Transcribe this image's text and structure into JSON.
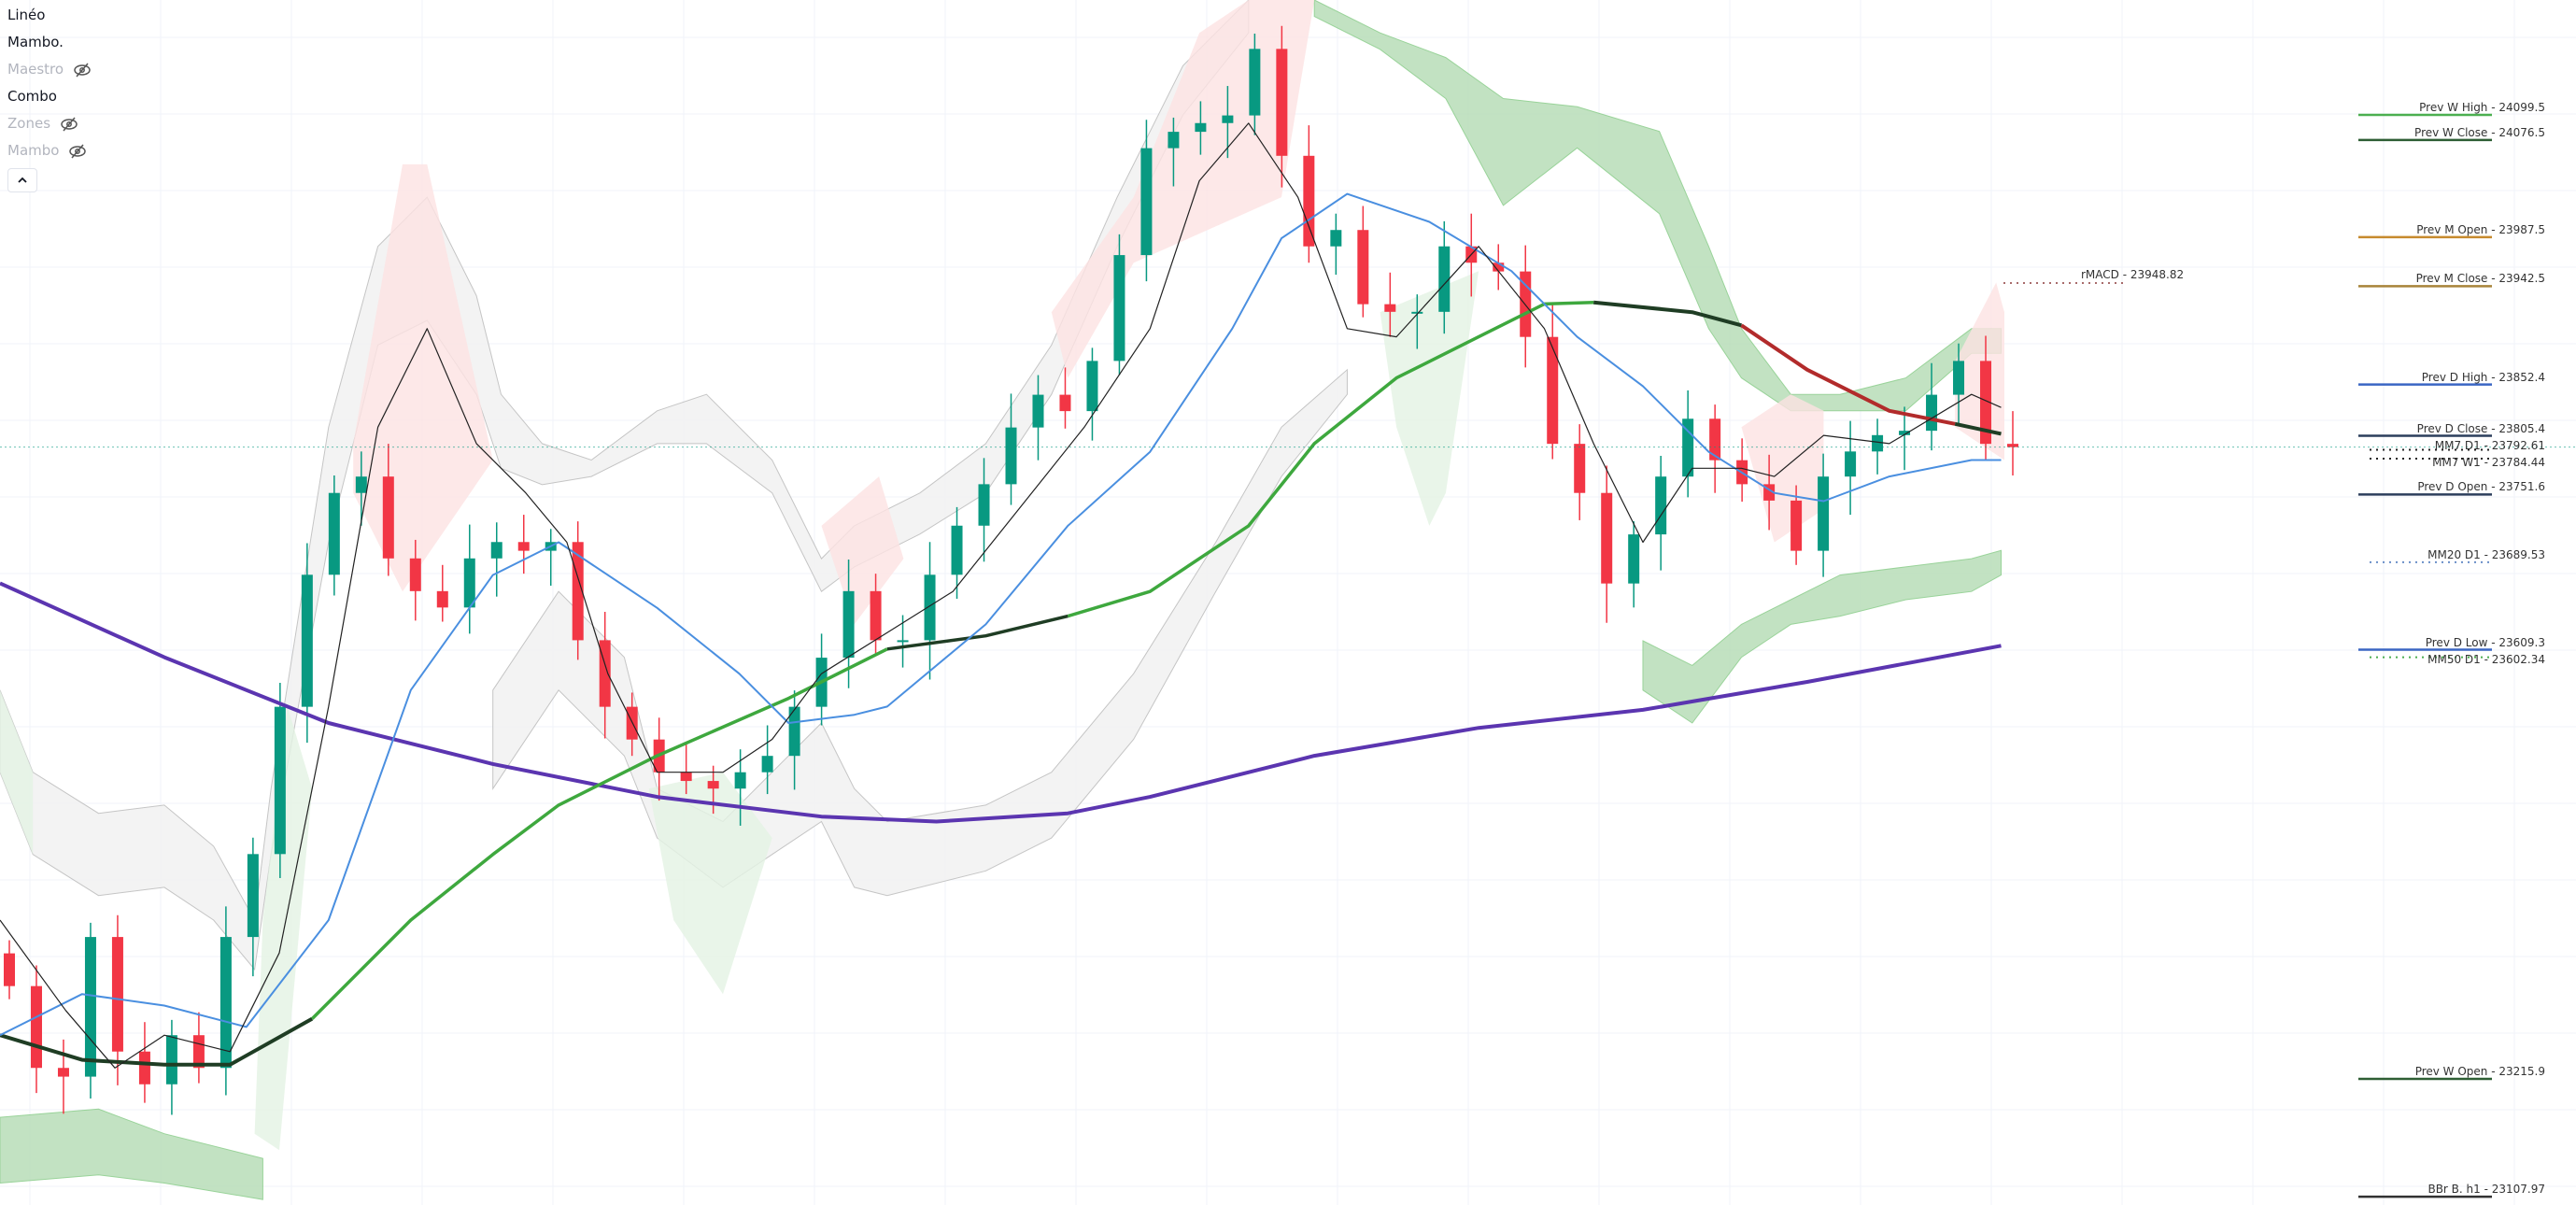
{
  "legend": {
    "items": [
      {
        "label": "Linéo",
        "hidden": false
      },
      {
        "label": "Mambo.",
        "hidden": false
      },
      {
        "label": "Maestro",
        "hidden": true
      },
      {
        "label": "Combo",
        "hidden": false
      },
      {
        "label": "Zones",
        "hidden": true
      },
      {
        "label": "Mambo",
        "hidden": true
      }
    ],
    "collapse_icon": "chevron-up-icon",
    "hidden_icon": "eye-off-icon"
  },
  "colors": {
    "up": "#089981",
    "down": "#f23645",
    "grid": "#f0f3fa"
  },
  "chart_data": {
    "type": "candlestick",
    "closes": [
      23301,
      23226,
      23218,
      23346,
      23241,
      23211,
      23256,
      23226,
      23346,
      23422,
      23557,
      23678,
      23753,
      23768,
      23693,
      23663,
      23648,
      23693,
      23708,
      23700,
      23708,
      23618,
      23557,
      23527,
      23497,
      23489,
      23482,
      23497,
      23512,
      23557,
      23602,
      23663,
      23618,
      23618,
      23678,
      23723,
      23761,
      23813,
      23843,
      23828,
      23874,
      23971,
      24069,
      24084,
      24092,
      24099,
      24160,
      24062,
      23979,
      23994,
      23926,
      23919,
      23919,
      23979,
      23964,
      23956,
      23896,
      23798,
      23753,
      23670,
      23715,
      23768,
      23821,
      23783,
      23761,
      23746,
      23700,
      23768,
      23791,
      23806,
      23810,
      23843,
      23874,
      23798,
      23795
    ],
    "ylim": [
      23080,
      24205
    ],
    "levels": [
      {
        "label": "Prev W High - 24099.5",
        "value": 24099.5,
        "color": "#4caf50",
        "style": "solid"
      },
      {
        "label": "Prev W Close - 24076.5",
        "value": 24076.5,
        "color": "#2e5e34",
        "style": "solid"
      },
      {
        "label": "Prev M Open - 23987.5",
        "value": 23987.5,
        "color": "#c68a2e",
        "style": "solid"
      },
      {
        "label": "Prev M Close - 23942.5",
        "value": 23942.5,
        "color": "#a8843a",
        "style": "solid"
      },
      {
        "label": "Prev D High - 23852.4",
        "value": 23852.4,
        "color": "#3a66c4",
        "style": "solid"
      },
      {
        "label": "Prev D Close - 23805.4",
        "value": 23805.4,
        "color": "#2c3e5c",
        "style": "solid"
      },
      {
        "label": "MM7 D1 - 23792.61",
        "value": 23792.61,
        "color": "#222222",
        "style": "dotted"
      },
      {
        "label": "MM7 W1 - 23784.44",
        "value": 23784.44,
        "color": "#222222",
        "style": "dotted"
      },
      {
        "label": "Prev D Open - 23751.6",
        "value": 23751.6,
        "color": "#2c3e5c",
        "style": "solid"
      },
      {
        "label": "MM20 D1 - 23689.53",
        "value": 23689.53,
        "color": "#6a8fc8",
        "style": "dotted"
      },
      {
        "label": "Prev D Low - 23609.3",
        "value": 23609.3,
        "color": "#3a66c4",
        "style": "solid"
      },
      {
        "label": "MM50 D1 - 23602.34",
        "value": 23602.34,
        "color": "#4caf50",
        "style": "dotted"
      },
      {
        "label": "Prev W Open - 23215.9",
        "value": 23215.9,
        "color": "#2e5e34",
        "style": "solid"
      },
      {
        "label": "BBr B. h1 - 23107.97",
        "value": 23107.97,
        "color": "#333333",
        "style": "solid"
      }
    ],
    "rmacd": {
      "label": "rMACD - 23948.82",
      "value": 23948.82
    },
    "current_price": 23795
  }
}
